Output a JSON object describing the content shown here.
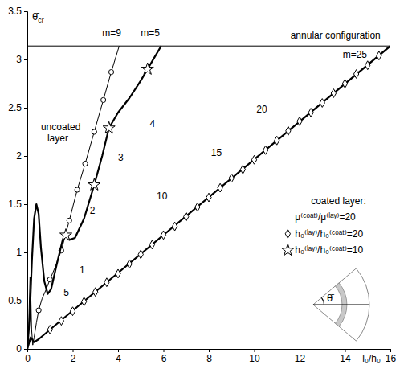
{
  "chart_data": {
    "type": "line",
    "x_label": "l₀/h₀",
    "y_label": "θ̄cr",
    "inset_label": "θ̄",
    "xlim": [
      0,
      16
    ],
    "ylim": [
      0,
      3.5
    ],
    "xticks": [
      0,
      2,
      4,
      6,
      8,
      10,
      12,
      14,
      16
    ],
    "yticks": [
      0,
      0.5,
      1,
      1.5,
      2,
      2.5,
      3,
      3.5
    ],
    "grid": false,
    "series": [
      {
        "type": "line",
        "color": "#000000",
        "line_style": "thin",
        "x": [
          0,
          16
        ],
        "values": [
          3.14,
          3.14
        ]
      },
      {
        "type": "line",
        "color": "#000000",
        "line_style": "thin",
        "x": [
          0,
          0.05,
          0.09,
          0.12,
          0.15,
          0.19,
          0.24,
          0.3,
          0.4,
          0.5,
          0.65,
          0.8,
          1.0,
          1.25,
          1.5,
          1.85,
          2.2,
          2.55,
          2.95,
          3.35,
          3.7,
          4.05
        ],
        "values": [
          0,
          0.12,
          0.5,
          0.75,
          0.6,
          0.2,
          0.04,
          0.12,
          0.27,
          0.4,
          0.52,
          0.6,
          0.72,
          0.86,
          1.02,
          1.33,
          1.65,
          1.92,
          2.25,
          2.58,
          2.87,
          3.14
        ]
      },
      {
        "type": "scatter",
        "color": "#000000",
        "marker": "circle",
        "x": [
          0.5,
          1.0,
          1.5,
          1.85,
          2.2,
          2.55,
          2.95,
          3.35,
          3.7
        ],
        "values": [
          0.4,
          0.72,
          1.02,
          1.33,
          1.65,
          1.92,
          2.25,
          2.58,
          2.87
        ]
      },
      {
        "type": "line",
        "color": "#000000",
        "line_style": "thick",
        "x": [
          0,
          0.1,
          0.2,
          0.3,
          0.4,
          0.5,
          0.6,
          0.75,
          0.9,
          1.05,
          1.3,
          1.55,
          1.7,
          1.85,
          2.1,
          2.5,
          2.95,
          3.3,
          3.6,
          4.0,
          4.5,
          5.0,
          5.3,
          5.6,
          5.9
        ],
        "values": [
          0,
          0.3,
          0.9,
          1.35,
          1.5,
          1.4,
          1.05,
          0.7,
          0.57,
          0.62,
          0.88,
          1.12,
          1.18,
          1.13,
          1.15,
          1.35,
          1.7,
          2.0,
          2.29,
          2.45,
          2.6,
          2.78,
          2.9,
          3.02,
          3.14
        ]
      },
      {
        "type": "scatter",
        "color": "#000000",
        "marker": "star",
        "x": [
          1.7,
          2.95,
          3.6,
          5.3
        ],
        "values": [
          1.18,
          1.7,
          2.29,
          2.9
        ]
      },
      {
        "type": "line",
        "color": "#000000",
        "line_style": "thick",
        "x": [
          0,
          0.15,
          0.3,
          0.5,
          1,
          16
        ],
        "values": [
          0,
          0.12,
          0.07,
          0.1,
          0.2,
          3.14
        ]
      },
      {
        "type": "scatter",
        "color": "#000000",
        "marker": "diamond",
        "x": [
          1,
          1.5,
          2,
          2.5,
          3,
          3.5,
          4,
          4.5,
          5,
          5.5,
          6,
          6.5,
          7,
          7.5,
          8,
          8.5,
          9,
          9.5,
          10,
          10.5,
          11,
          11.5,
          12,
          12.5,
          13,
          13.5,
          14,
          14.5,
          15,
          15.5
        ],
        "values": [
          0.2,
          0.29,
          0.39,
          0.49,
          0.59,
          0.69,
          0.78,
          0.88,
          0.98,
          1.08,
          1.18,
          1.27,
          1.37,
          1.47,
          1.57,
          1.67,
          1.77,
          1.86,
          1.96,
          2.06,
          2.16,
          2.26,
          2.36,
          2.45,
          2.55,
          2.65,
          2.75,
          2.85,
          2.94,
          3.04
        ]
      }
    ],
    "annotations": [
      {
        "text": "annular configuration",
        "x": 11.6,
        "y": 3.22
      },
      {
        "text": "m=9",
        "x": 3.3,
        "y": 3.24
      },
      {
        "text": "m=5",
        "x": 5.0,
        "y": 3.24
      },
      {
        "text": "m=25",
        "x": 13.9,
        "y": 3.02
      },
      {
        "text": "uncoated layer",
        "x": 0.6,
        "y": 2.15
      },
      {
        "text": "1",
        "x": 2.3,
        "y": 0.78
      },
      {
        "text": "2",
        "x": 2.75,
        "y": 1.4
      },
      {
        "text": "3",
        "x": 4.0,
        "y": 1.95
      },
      {
        "text": "4",
        "x": 5.4,
        "y": 2.3
      },
      {
        "text": "5",
        "x": 1.6,
        "y": 0.55
      },
      {
        "text": "10",
        "x": 5.7,
        "y": 1.55
      },
      {
        "text": "15",
        "x": 8.1,
        "y": 2.0
      },
      {
        "text": "20",
        "x": 10.1,
        "y": 2.45
      },
      {
        "text": "coated layer:",
        "x": 12.5,
        "y": 1.5
      },
      {
        "text": "μ⁽ᶜᵒᵃᵗ⁾/μ⁽ˡᵃʸ⁾=20",
        "x": 11.8,
        "y": 1.33
      },
      {
        "text": "h₀⁽ˡᵃʸ⁾/h₀⁽ᶜᵒᵃᵗ⁾=20",
        "x": 11.8,
        "y": 1.16,
        "marker": "diamond"
      },
      {
        "text": "h₀⁽ˡᵃʸ⁾/h₀⁽ᶜᵒᵃᵗ⁾=10",
        "x": 11.8,
        "y": 0.99,
        "marker": "star"
      }
    ]
  }
}
